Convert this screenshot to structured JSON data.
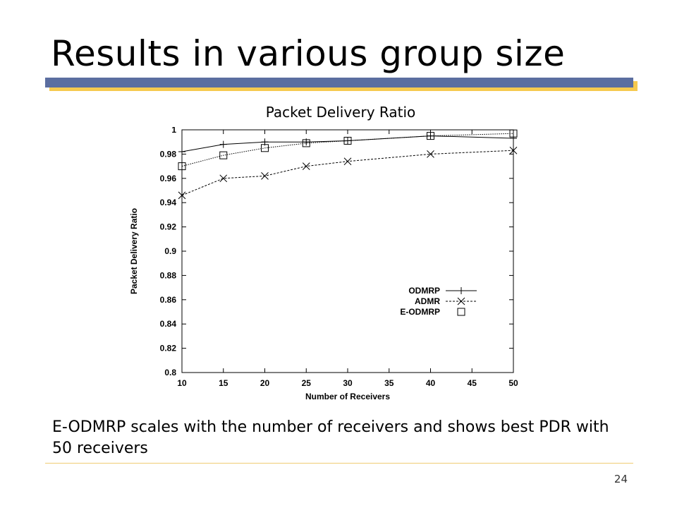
{
  "slide": {
    "title": "Results in various group size",
    "chart_heading": "Packet Delivery Ratio",
    "caption": "E-ODMRP scales with the number of receivers and shows best PDR with 50 receivers",
    "page_number": "24"
  },
  "colors": {
    "title_bar": "#5b6ea0",
    "title_bar_shadow": "#f6c94e",
    "footer_line": "#f0cc74"
  },
  "chart_data": {
    "type": "line",
    "title": "",
    "xlabel": "Number of Receivers",
    "ylabel": "Packet Delivery Ratio",
    "xlim": [
      10,
      50
    ],
    "ylim": [
      0.8,
      1.0
    ],
    "xticks": [
      "10",
      "15",
      "20",
      "25",
      "30",
      "35",
      "40",
      "45",
      "50"
    ],
    "yticks": [
      "0.8",
      "0.82",
      "0.84",
      "0.86",
      "0.88",
      "0.9",
      "0.92",
      "0.94",
      "0.96",
      "0.98",
      "1"
    ],
    "legend_position": "right, mid-lower",
    "grid": false,
    "x": [
      10,
      15,
      20,
      25,
      30,
      40,
      50
    ],
    "series": [
      {
        "name": "ODMRP",
        "marker": "plus",
        "dash": "solid",
        "values": [
          0.982,
          0.988,
          0.99,
          0.99,
          0.991,
          0.995,
          0.993
        ]
      },
      {
        "name": "ADMR",
        "marker": "cross",
        "dash": "dotted",
        "values": [
          0.946,
          0.96,
          0.962,
          0.97,
          0.974,
          0.98,
          0.983
        ]
      },
      {
        "name": "E-ODMRP",
        "marker": "square",
        "dash": "fine-dotted",
        "values": [
          0.97,
          0.979,
          0.985,
          0.989,
          0.991,
          0.995,
          0.997
        ]
      }
    ]
  }
}
